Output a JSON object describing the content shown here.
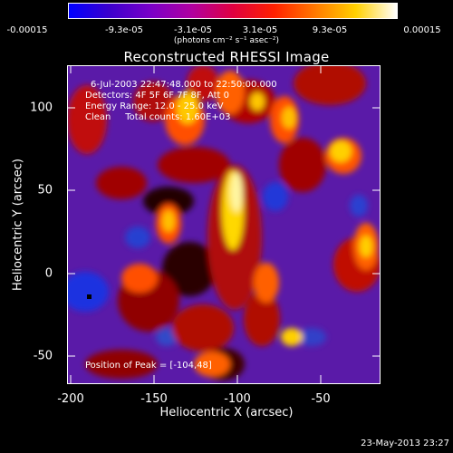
{
  "colorbar": {
    "ticks": [
      "-0.00015",
      "-9.3e-05",
      "-3.1e-05",
      "3.1e-05",
      "9.3e-05",
      "0.00015"
    ],
    "units_label": "(photons cm⁻² s⁻¹ asec⁻²)",
    "colors": [
      "#0000ff",
      "#3c00cc",
      "#7a00c8",
      "#b000a0",
      "#e00040",
      "#ff2000",
      "#ff7800",
      "#ffd000",
      "#ffffff"
    ]
  },
  "plot": {
    "title": "Reconstructed RHESSI Image",
    "xlabel": "Heliocentric X (arcsec)",
    "ylabel": "Heliocentric Y (arcsec)",
    "xticks": [
      "-200",
      "-150",
      "-100",
      "-50"
    ],
    "yticks": [
      "100",
      "50",
      "0",
      "-50"
    ],
    "xlim": [
      -200,
      -15
    ],
    "ylim": [
      -68,
      122
    ]
  },
  "info": {
    "time": "6-Jul-2003 22:47:48.000 to 22:50:00.000",
    "detectors": "Detectors: 4F 5F 6F 7F 8F, Att 0",
    "energy": "Energy Range: 12.0 - 25.0 keV",
    "clean": "Clean     Total counts: 1.60E+03",
    "peak": "Position of Peak = [-104,48]"
  },
  "footer": {
    "timestamp": "23-May-2013 23:27"
  }
}
